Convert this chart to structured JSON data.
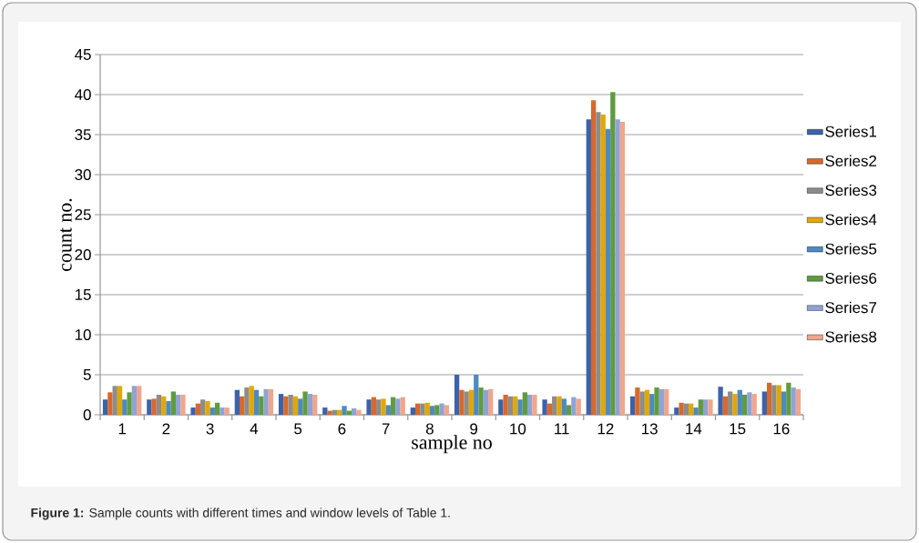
{
  "chart_data": {
    "type": "bar",
    "xlabel": "sample no",
    "ylabel": "count no.",
    "annotations": [
      "**Figure 1:** Sample counts with different times and window levels of Table 1."
    ],
    "categories": [
      "1",
      "2",
      "3",
      "4",
      "5",
      "6",
      "7",
      "8",
      "9",
      "10",
      "11",
      "12",
      "13",
      "14",
      "15",
      "16"
    ],
    "ylim": [
      0,
      45
    ],
    "yticks": [
      0,
      5,
      10,
      15,
      20,
      25,
      30,
      35,
      40,
      45
    ],
    "grid": "y",
    "legend": "right",
    "series": [
      {
        "name": "Series1",
        "color": "#3c62aa",
        "values": [
          1.9,
          1.9,
          0.9,
          3.1,
          2.6,
          0.9,
          1.9,
          0.9,
          5.0,
          1.9,
          1.9,
          36.9,
          2.3,
          0.9,
          3.5,
          2.9
        ]
      },
      {
        "name": "Series2",
        "color": "#d8692b",
        "values": [
          2.8,
          2.0,
          1.4,
          2.3,
          2.3,
          0.5,
          2.2,
          1.4,
          3.1,
          2.5,
          1.4,
          39.3,
          3.4,
          1.5,
          2.3,
          4.0
        ]
      },
      {
        "name": "Series3",
        "color": "#8c8c8c",
        "values": [
          3.6,
          2.5,
          1.9,
          3.4,
          2.5,
          0.6,
          1.9,
          1.4,
          2.9,
          2.3,
          2.3,
          37.8,
          2.9,
          1.4,
          2.9,
          3.7
        ]
      },
      {
        "name": "Series4",
        "color": "#e2a800",
        "values": [
          3.6,
          2.3,
          1.7,
          3.6,
          2.3,
          0.6,
          2.0,
          1.5,
          3.1,
          2.3,
          2.3,
          37.5,
          3.1,
          1.4,
          2.6,
          3.7
        ]
      },
      {
        "name": "Series5",
        "color": "#4e89c1",
        "values": [
          1.9,
          1.7,
          0.9,
          3.1,
          2.0,
          1.1,
          1.2,
          1.1,
          5.0,
          1.9,
          2.0,
          35.7,
          2.6,
          0.9,
          3.1,
          2.9
        ]
      },
      {
        "name": "Series6",
        "color": "#5f9c3f",
        "values": [
          2.8,
          2.9,
          1.5,
          2.3,
          2.9,
          0.5,
          2.2,
          1.2,
          3.4,
          2.8,
          1.2,
          40.3,
          3.4,
          1.9,
          2.5,
          4.0
        ]
      },
      {
        "name": "Series7",
        "color": "#8fa3d6",
        "values": [
          3.6,
          2.5,
          0.9,
          3.2,
          2.6,
          0.8,
          2.0,
          1.4,
          3.1,
          2.5,
          2.2,
          36.9,
          3.2,
          1.9,
          2.8,
          3.4
        ]
      },
      {
        "name": "Series8",
        "color": "#f0a68c",
        "values": [
          3.6,
          2.5,
          0.9,
          3.2,
          2.5,
          0.6,
          2.2,
          1.2,
          3.2,
          2.5,
          2.0,
          36.6,
          3.2,
          1.9,
          2.6,
          3.2
        ]
      }
    ]
  }
}
